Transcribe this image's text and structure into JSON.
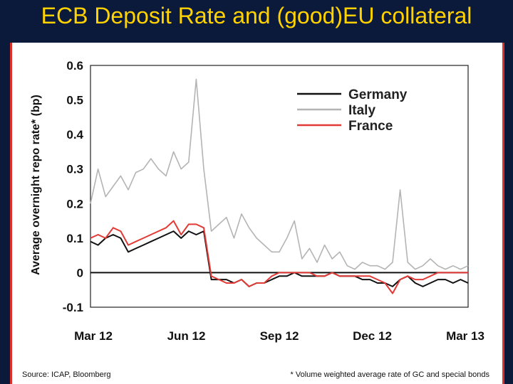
{
  "slide": {
    "title": "ECB Deposit Rate and (good)EU collateral"
  },
  "chart_data": {
    "type": "line",
    "title": "",
    "xlabel": "",
    "ylabel": "Average overnight repo rate* (bp)",
    "ylim": [
      -0.1,
      0.6
    ],
    "yticks": [
      "0.6",
      "0.5",
      "0.4",
      "0.3",
      "0.2",
      "0.1",
      "0",
      "-0.1"
    ],
    "xticks": [
      "Mar 12",
      "Jun 12",
      "Sep 12",
      "Dec 12",
      "Mar 13"
    ],
    "xlim": [
      0,
      1
    ],
    "grid": false,
    "zero_line": true,
    "legend_position": "top-right",
    "x": [
      0,
      0.02,
      0.04,
      0.06,
      0.08,
      0.1,
      0.12,
      0.14,
      0.16,
      0.18,
      0.2,
      0.22,
      0.24,
      0.26,
      0.28,
      0.3,
      0.32,
      0.34,
      0.36,
      0.38,
      0.4,
      0.42,
      0.44,
      0.46,
      0.48,
      0.5,
      0.52,
      0.54,
      0.56,
      0.58,
      0.6,
      0.62,
      0.64,
      0.66,
      0.68,
      0.7,
      0.72,
      0.74,
      0.76,
      0.78,
      0.8,
      0.82,
      0.84,
      0.86,
      0.88,
      0.9,
      0.92,
      0.94,
      0.96,
      0.98,
      1.0
    ],
    "series": [
      {
        "name": "Germany",
        "color": "#111111",
        "values": [
          0.09,
          0.08,
          0.1,
          0.11,
          0.1,
          0.06,
          0.07,
          0.08,
          0.09,
          0.1,
          0.11,
          0.12,
          0.1,
          0.12,
          0.11,
          0.12,
          -0.02,
          -0.02,
          -0.02,
          -0.03,
          -0.02,
          -0.04,
          -0.03,
          -0.03,
          -0.02,
          -0.01,
          -0.01,
          0.0,
          -0.01,
          -0.01,
          -0.01,
          -0.01,
          0.0,
          -0.01,
          -0.01,
          -0.01,
          -0.02,
          -0.02,
          -0.03,
          -0.03,
          -0.04,
          -0.02,
          -0.01,
          -0.03,
          -0.04,
          -0.03,
          -0.02,
          -0.02,
          -0.03,
          -0.02,
          -0.03
        ]
      },
      {
        "name": "Italy",
        "color": "#b4b4b4",
        "values": [
          0.2,
          0.3,
          0.22,
          0.25,
          0.28,
          0.24,
          0.29,
          0.3,
          0.33,
          0.3,
          0.28,
          0.35,
          0.3,
          0.32,
          0.56,
          0.3,
          0.12,
          0.14,
          0.16,
          0.1,
          0.17,
          0.13,
          0.1,
          0.08,
          0.06,
          0.06,
          0.1,
          0.15,
          0.04,
          0.07,
          0.03,
          0.08,
          0.04,
          0.06,
          0.02,
          0.01,
          0.03,
          0.02,
          0.02,
          0.01,
          0.03,
          0.24,
          0.03,
          0.01,
          0.02,
          0.04,
          0.02,
          0.01,
          0.02,
          0.01,
          0.02
        ]
      },
      {
        "name": "France",
        "color": "#e23a36",
        "values": [
          0.1,
          0.11,
          0.1,
          0.13,
          0.12,
          0.08,
          0.09,
          0.1,
          0.11,
          0.12,
          0.13,
          0.15,
          0.11,
          0.14,
          0.14,
          0.13,
          -0.01,
          -0.02,
          -0.03,
          -0.03,
          -0.02,
          -0.04,
          -0.03,
          -0.03,
          -0.01,
          0.0,
          0.0,
          0.0,
          0.0,
          0.0,
          -0.01,
          -0.01,
          0.0,
          -0.01,
          -0.01,
          -0.01,
          -0.01,
          -0.01,
          -0.02,
          -0.03,
          -0.06,
          -0.02,
          -0.01,
          -0.02,
          -0.02,
          -0.01,
          0.0,
          0.0,
          0.0,
          0.0,
          0.0
        ]
      }
    ],
    "source": "Source: ICAP, Bloomberg",
    "footnote": "* Volume weighted average rate of GC and special bonds"
  }
}
